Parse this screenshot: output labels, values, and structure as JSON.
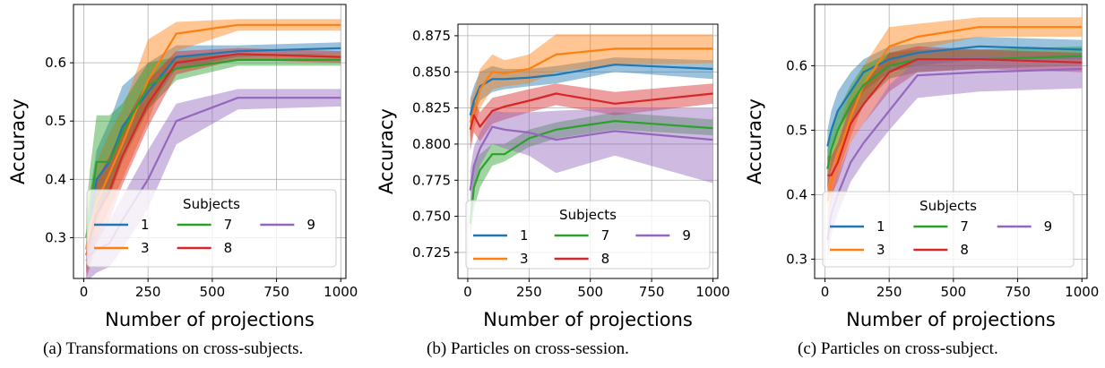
{
  "colors": {
    "1": "#1f77b4",
    "3": "#ff7f0e",
    "7": "#2ca02c",
    "8": "#d62728",
    "9": "#9467bd",
    "grid": "#b0b0b0"
  },
  "captions": [
    "(a) Transformations on cross-subjects.",
    "(b) Particles on cross-session.",
    "(c) Particles on cross-subject."
  ],
  "chart_data": [
    {
      "type": "line",
      "xlabel": "Number of projections",
      "ylabel": "Accuracy",
      "xlim": [
        -40,
        1020
      ],
      "ylim": [
        0.23,
        0.7
      ],
      "xticks": [
        0,
        250,
        500,
        750,
        1000
      ],
      "yticks": [
        0.3,
        0.4,
        0.5,
        0.6
      ],
      "ytick_labels": [
        "0.3",
        "0.4",
        "0.5",
        "0.6"
      ],
      "grid": true,
      "legend": {
        "title": "Subjects",
        "placement": "lower-center",
        "columns": 3
      },
      "series": [
        {
          "name": "1",
          "x": [
            10,
            25,
            50,
            100,
            150,
            250,
            360,
            600,
            1000
          ],
          "y": [
            0.28,
            0.33,
            0.4,
            0.43,
            0.49,
            0.55,
            0.61,
            0.62,
            0.625
          ],
          "lower": [
            0.24,
            0.27,
            0.33,
            0.38,
            0.45,
            0.52,
            0.59,
            0.61,
            0.615
          ],
          "upper": [
            0.32,
            0.38,
            0.45,
            0.5,
            0.56,
            0.6,
            0.63,
            0.63,
            0.635
          ]
        },
        {
          "name": "3",
          "x": [
            10,
            25,
            50,
            100,
            150,
            250,
            360,
            600,
            1000
          ],
          "y": [
            0.28,
            0.32,
            0.36,
            0.41,
            0.46,
            0.57,
            0.65,
            0.665,
            0.665
          ],
          "lower": [
            0.24,
            0.26,
            0.3,
            0.35,
            0.4,
            0.5,
            0.62,
            0.655,
            0.655
          ],
          "upper": [
            0.33,
            0.38,
            0.43,
            0.48,
            0.52,
            0.64,
            0.67,
            0.675,
            0.675
          ]
        },
        {
          "name": "7",
          "x": [
            10,
            25,
            50,
            100,
            150,
            250,
            360,
            600,
            1000
          ],
          "y": [
            0.3,
            0.35,
            0.43,
            0.43,
            0.48,
            0.56,
            0.59,
            0.605,
            0.605
          ],
          "lower": [
            0.25,
            0.29,
            0.35,
            0.37,
            0.43,
            0.52,
            0.57,
            0.595,
            0.595
          ],
          "upper": [
            0.35,
            0.42,
            0.51,
            0.51,
            0.53,
            0.6,
            0.61,
            0.615,
            0.615
          ]
        },
        {
          "name": "8",
          "x": [
            10,
            25,
            50,
            100,
            150,
            250,
            360,
            600,
            1000
          ],
          "y": [
            0.27,
            0.3,
            0.34,
            0.38,
            0.44,
            0.53,
            0.6,
            0.615,
            0.61
          ],
          "lower": [
            0.23,
            0.25,
            0.29,
            0.33,
            0.39,
            0.49,
            0.58,
            0.605,
            0.6
          ],
          "upper": [
            0.31,
            0.35,
            0.4,
            0.44,
            0.49,
            0.57,
            0.62,
            0.625,
            0.62
          ]
        },
        {
          "name": "9",
          "x": [
            10,
            25,
            50,
            100,
            150,
            250,
            360,
            600,
            1000
          ],
          "y": [
            0.26,
            0.27,
            0.28,
            0.29,
            0.33,
            0.4,
            0.5,
            0.54,
            0.54
          ],
          "lower": [
            0.23,
            0.23,
            0.24,
            0.25,
            0.28,
            0.35,
            0.46,
            0.52,
            0.525
          ],
          "upper": [
            0.29,
            0.3,
            0.31,
            0.33,
            0.37,
            0.45,
            0.53,
            0.555,
            0.555
          ]
        }
      ]
    },
    {
      "type": "line",
      "xlabel": "Number of projections",
      "ylabel": "Accuracy",
      "xlim": [
        -40,
        1020
      ],
      "ylim": [
        0.707,
        0.883
      ],
      "xticks": [
        0,
        250,
        500,
        750,
        1000
      ],
      "yticks": [
        0.725,
        0.75,
        0.775,
        0.8,
        0.825,
        0.85,
        0.875
      ],
      "ytick_labels": [
        "0.725",
        "0.750",
        "0.775",
        "0.800",
        "0.825",
        "0.850",
        "0.875"
      ],
      "grid": true,
      "legend": {
        "title": "Subjects",
        "placement": "lower-center",
        "columns": 3
      },
      "series": [
        {
          "name": "1",
          "x": [
            10,
            25,
            50,
            100,
            150,
            250,
            360,
            600,
            1000
          ],
          "y": [
            0.82,
            0.83,
            0.84,
            0.845,
            0.845,
            0.846,
            0.848,
            0.855,
            0.852
          ],
          "lower": [
            0.805,
            0.818,
            0.83,
            0.836,
            0.838,
            0.84,
            0.842,
            0.85,
            0.845
          ],
          "upper": [
            0.832,
            0.84,
            0.85,
            0.854,
            0.852,
            0.852,
            0.854,
            0.86,
            0.858
          ]
        },
        {
          "name": "3",
          "x": [
            10,
            25,
            50,
            100,
            150,
            250,
            360,
            600,
            1000
          ],
          "y": [
            0.815,
            0.822,
            0.838,
            0.85,
            0.849,
            0.852,
            0.862,
            0.866,
            0.866
          ],
          "lower": [
            0.8,
            0.81,
            0.825,
            0.838,
            0.84,
            0.842,
            0.85,
            0.855,
            0.856
          ],
          "upper": [
            0.83,
            0.836,
            0.852,
            0.862,
            0.858,
            0.862,
            0.876,
            0.876,
            0.876
          ]
        },
        {
          "name": "7",
          "x": [
            10,
            25,
            50,
            100,
            150,
            250,
            360,
            600,
            1000
          ],
          "y": [
            0.745,
            0.77,
            0.782,
            0.793,
            0.793,
            0.804,
            0.81,
            0.816,
            0.811
          ],
          "lower": [
            0.735,
            0.755,
            0.77,
            0.785,
            0.788,
            0.798,
            0.804,
            0.81,
            0.806
          ],
          "upper": [
            0.755,
            0.785,
            0.793,
            0.8,
            0.8,
            0.81,
            0.815,
            0.822,
            0.817
          ]
        },
        {
          "name": "8",
          "x": [
            10,
            25,
            50,
            100,
            150,
            250,
            360,
            600,
            1000
          ],
          "y": [
            0.81,
            0.82,
            0.812,
            0.823,
            0.826,
            0.83,
            0.835,
            0.828,
            0.835
          ],
          "lower": [
            0.795,
            0.808,
            0.802,
            0.814,
            0.817,
            0.822,
            0.827,
            0.82,
            0.828
          ],
          "upper": [
            0.822,
            0.83,
            0.822,
            0.832,
            0.834,
            0.838,
            0.842,
            0.836,
            0.842
          ]
        },
        {
          "name": "9",
          "x": [
            10,
            25,
            50,
            100,
            150,
            250,
            360,
            600,
            1000
          ],
          "y": [
            0.768,
            0.785,
            0.797,
            0.812,
            0.81,
            0.808,
            0.803,
            0.809,
            0.803
          ],
          "lower": [
            0.752,
            0.772,
            0.785,
            0.8,
            0.797,
            0.792,
            0.78,
            0.792,
            0.773
          ],
          "upper": [
            0.782,
            0.798,
            0.808,
            0.823,
            0.822,
            0.822,
            0.823,
            0.825,
            0.825
          ]
        }
      ]
    },
    {
      "type": "line",
      "xlabel": "Number of projections",
      "ylabel": "Accuracy",
      "xlim": [
        -40,
        1020
      ],
      "ylim": [
        0.27,
        0.695
      ],
      "xticks": [
        0,
        250,
        500,
        750,
        1000
      ],
      "yticks": [
        0.3,
        0.4,
        0.5,
        0.6
      ],
      "ytick_labels": [
        "0.3",
        "0.4",
        "0.5",
        "0.6"
      ],
      "grid": true,
      "legend": {
        "title": "Subjects",
        "placement": "lower-center",
        "columns": 3
      },
      "series": [
        {
          "name": "1",
          "x": [
            10,
            25,
            50,
            100,
            150,
            250,
            360,
            600,
            1000
          ],
          "y": [
            0.475,
            0.5,
            0.53,
            0.56,
            0.59,
            0.61,
            0.62,
            0.63,
            0.625
          ],
          "lower": [
            0.45,
            0.47,
            0.5,
            0.53,
            0.56,
            0.59,
            0.6,
            0.61,
            0.61
          ],
          "upper": [
            0.5,
            0.53,
            0.56,
            0.59,
            0.61,
            0.63,
            0.635,
            0.645,
            0.64
          ]
        },
        {
          "name": "3",
          "x": [
            10,
            25,
            50,
            100,
            150,
            250,
            360,
            600,
            1000
          ],
          "y": [
            0.39,
            0.42,
            0.46,
            0.52,
            0.57,
            0.63,
            0.645,
            0.66,
            0.66
          ],
          "lower": [
            0.36,
            0.39,
            0.43,
            0.49,
            0.54,
            0.6,
            0.625,
            0.645,
            0.645
          ],
          "upper": [
            0.42,
            0.46,
            0.5,
            0.56,
            0.6,
            0.66,
            0.665,
            0.675,
            0.675
          ]
        },
        {
          "name": "7",
          "x": [
            10,
            25,
            50,
            100,
            150,
            250,
            360,
            600,
            1000
          ],
          "y": [
            0.44,
            0.47,
            0.5,
            0.54,
            0.57,
            0.6,
            0.61,
            0.61,
            0.615
          ],
          "lower": [
            0.41,
            0.44,
            0.47,
            0.51,
            0.54,
            0.58,
            0.59,
            0.595,
            0.6
          ],
          "upper": [
            0.47,
            0.5,
            0.53,
            0.57,
            0.6,
            0.62,
            0.625,
            0.625,
            0.63
          ]
        },
        {
          "name": "8",
          "x": [
            10,
            25,
            50,
            100,
            150,
            250,
            360,
            600,
            1000
          ],
          "y": [
            0.43,
            0.43,
            0.45,
            0.51,
            0.54,
            0.59,
            0.61,
            0.61,
            0.605
          ],
          "lower": [
            0.4,
            0.4,
            0.42,
            0.48,
            0.51,
            0.56,
            0.59,
            0.595,
            0.59
          ],
          "upper": [
            0.46,
            0.46,
            0.48,
            0.54,
            0.57,
            0.62,
            0.63,
            0.625,
            0.62
          ]
        },
        {
          "name": "9",
          "x": [
            10,
            25,
            50,
            100,
            150,
            250,
            360,
            600,
            1000
          ],
          "y": [
            0.33,
            0.37,
            0.4,
            0.45,
            0.48,
            0.53,
            0.585,
            0.59,
            0.595
          ],
          "lower": [
            0.3,
            0.34,
            0.37,
            0.42,
            0.45,
            0.5,
            0.55,
            0.56,
            0.565
          ],
          "upper": [
            0.36,
            0.4,
            0.43,
            0.48,
            0.51,
            0.57,
            0.61,
            0.615,
            0.615
          ]
        }
      ]
    }
  ]
}
